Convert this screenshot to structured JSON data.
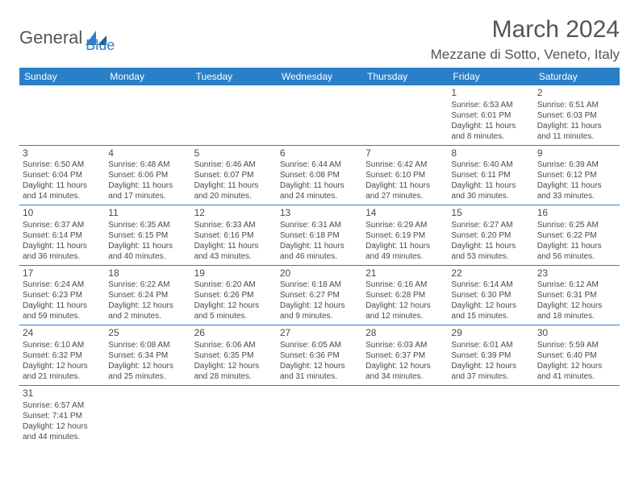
{
  "logo": {
    "part1": "General",
    "part2": "Blue"
  },
  "title": "March 2024",
  "location": "Mezzane di Sotto, Veneto, Italy",
  "colors": {
    "header_bg": "#2a7fc9",
    "header_text": "#ffffff",
    "body_text": "#4a4a4a",
    "page_bg": "#ffffff",
    "rule": "#2a7fc9"
  },
  "fonts": {
    "title_size": 30,
    "location_size": 17,
    "weekday_size": 12,
    "cell_size": 10,
    "daynum_size": 12
  },
  "weekdays": [
    "Sunday",
    "Monday",
    "Tuesday",
    "Wednesday",
    "Thursday",
    "Friday",
    "Saturday"
  ],
  "weeks": [
    [
      null,
      null,
      null,
      null,
      null,
      {
        "n": "1",
        "sr": "Sunrise: 6:53 AM",
        "ss": "Sunset: 6:01 PM",
        "dl1": "Daylight: 11 hours",
        "dl2": "and 8 minutes."
      },
      {
        "n": "2",
        "sr": "Sunrise: 6:51 AM",
        "ss": "Sunset: 6:03 PM",
        "dl1": "Daylight: 11 hours",
        "dl2": "and 11 minutes."
      }
    ],
    [
      {
        "n": "3",
        "sr": "Sunrise: 6:50 AM",
        "ss": "Sunset: 6:04 PM",
        "dl1": "Daylight: 11 hours",
        "dl2": "and 14 minutes."
      },
      {
        "n": "4",
        "sr": "Sunrise: 6:48 AM",
        "ss": "Sunset: 6:06 PM",
        "dl1": "Daylight: 11 hours",
        "dl2": "and 17 minutes."
      },
      {
        "n": "5",
        "sr": "Sunrise: 6:46 AM",
        "ss": "Sunset: 6:07 PM",
        "dl1": "Daylight: 11 hours",
        "dl2": "and 20 minutes."
      },
      {
        "n": "6",
        "sr": "Sunrise: 6:44 AM",
        "ss": "Sunset: 6:08 PM",
        "dl1": "Daylight: 11 hours",
        "dl2": "and 24 minutes."
      },
      {
        "n": "7",
        "sr": "Sunrise: 6:42 AM",
        "ss": "Sunset: 6:10 PM",
        "dl1": "Daylight: 11 hours",
        "dl2": "and 27 minutes."
      },
      {
        "n": "8",
        "sr": "Sunrise: 6:40 AM",
        "ss": "Sunset: 6:11 PM",
        "dl1": "Daylight: 11 hours",
        "dl2": "and 30 minutes."
      },
      {
        "n": "9",
        "sr": "Sunrise: 6:39 AM",
        "ss": "Sunset: 6:12 PM",
        "dl1": "Daylight: 11 hours",
        "dl2": "and 33 minutes."
      }
    ],
    [
      {
        "n": "10",
        "sr": "Sunrise: 6:37 AM",
        "ss": "Sunset: 6:14 PM",
        "dl1": "Daylight: 11 hours",
        "dl2": "and 36 minutes."
      },
      {
        "n": "11",
        "sr": "Sunrise: 6:35 AM",
        "ss": "Sunset: 6:15 PM",
        "dl1": "Daylight: 11 hours",
        "dl2": "and 40 minutes."
      },
      {
        "n": "12",
        "sr": "Sunrise: 6:33 AM",
        "ss": "Sunset: 6:16 PM",
        "dl1": "Daylight: 11 hours",
        "dl2": "and 43 minutes."
      },
      {
        "n": "13",
        "sr": "Sunrise: 6:31 AM",
        "ss": "Sunset: 6:18 PM",
        "dl1": "Daylight: 11 hours",
        "dl2": "and 46 minutes."
      },
      {
        "n": "14",
        "sr": "Sunrise: 6:29 AM",
        "ss": "Sunset: 6:19 PM",
        "dl1": "Daylight: 11 hours",
        "dl2": "and 49 minutes."
      },
      {
        "n": "15",
        "sr": "Sunrise: 6:27 AM",
        "ss": "Sunset: 6:20 PM",
        "dl1": "Daylight: 11 hours",
        "dl2": "and 53 minutes."
      },
      {
        "n": "16",
        "sr": "Sunrise: 6:25 AM",
        "ss": "Sunset: 6:22 PM",
        "dl1": "Daylight: 11 hours",
        "dl2": "and 56 minutes."
      }
    ],
    [
      {
        "n": "17",
        "sr": "Sunrise: 6:24 AM",
        "ss": "Sunset: 6:23 PM",
        "dl1": "Daylight: 11 hours",
        "dl2": "and 59 minutes."
      },
      {
        "n": "18",
        "sr": "Sunrise: 6:22 AM",
        "ss": "Sunset: 6:24 PM",
        "dl1": "Daylight: 12 hours",
        "dl2": "and 2 minutes."
      },
      {
        "n": "19",
        "sr": "Sunrise: 6:20 AM",
        "ss": "Sunset: 6:26 PM",
        "dl1": "Daylight: 12 hours",
        "dl2": "and 5 minutes."
      },
      {
        "n": "20",
        "sr": "Sunrise: 6:18 AM",
        "ss": "Sunset: 6:27 PM",
        "dl1": "Daylight: 12 hours",
        "dl2": "and 9 minutes."
      },
      {
        "n": "21",
        "sr": "Sunrise: 6:16 AM",
        "ss": "Sunset: 6:28 PM",
        "dl1": "Daylight: 12 hours",
        "dl2": "and 12 minutes."
      },
      {
        "n": "22",
        "sr": "Sunrise: 6:14 AM",
        "ss": "Sunset: 6:30 PM",
        "dl1": "Daylight: 12 hours",
        "dl2": "and 15 minutes."
      },
      {
        "n": "23",
        "sr": "Sunrise: 6:12 AM",
        "ss": "Sunset: 6:31 PM",
        "dl1": "Daylight: 12 hours",
        "dl2": "and 18 minutes."
      }
    ],
    [
      {
        "n": "24",
        "sr": "Sunrise: 6:10 AM",
        "ss": "Sunset: 6:32 PM",
        "dl1": "Daylight: 12 hours",
        "dl2": "and 21 minutes."
      },
      {
        "n": "25",
        "sr": "Sunrise: 6:08 AM",
        "ss": "Sunset: 6:34 PM",
        "dl1": "Daylight: 12 hours",
        "dl2": "and 25 minutes."
      },
      {
        "n": "26",
        "sr": "Sunrise: 6:06 AM",
        "ss": "Sunset: 6:35 PM",
        "dl1": "Daylight: 12 hours",
        "dl2": "and 28 minutes."
      },
      {
        "n": "27",
        "sr": "Sunrise: 6:05 AM",
        "ss": "Sunset: 6:36 PM",
        "dl1": "Daylight: 12 hours",
        "dl2": "and 31 minutes."
      },
      {
        "n": "28",
        "sr": "Sunrise: 6:03 AM",
        "ss": "Sunset: 6:37 PM",
        "dl1": "Daylight: 12 hours",
        "dl2": "and 34 minutes."
      },
      {
        "n": "29",
        "sr": "Sunrise: 6:01 AM",
        "ss": "Sunset: 6:39 PM",
        "dl1": "Daylight: 12 hours",
        "dl2": "and 37 minutes."
      },
      {
        "n": "30",
        "sr": "Sunrise: 5:59 AM",
        "ss": "Sunset: 6:40 PM",
        "dl1": "Daylight: 12 hours",
        "dl2": "and 41 minutes."
      }
    ],
    [
      {
        "n": "31",
        "sr": "Sunrise: 6:57 AM",
        "ss": "Sunset: 7:41 PM",
        "dl1": "Daylight: 12 hours",
        "dl2": "and 44 minutes."
      },
      null,
      null,
      null,
      null,
      null,
      null
    ]
  ]
}
